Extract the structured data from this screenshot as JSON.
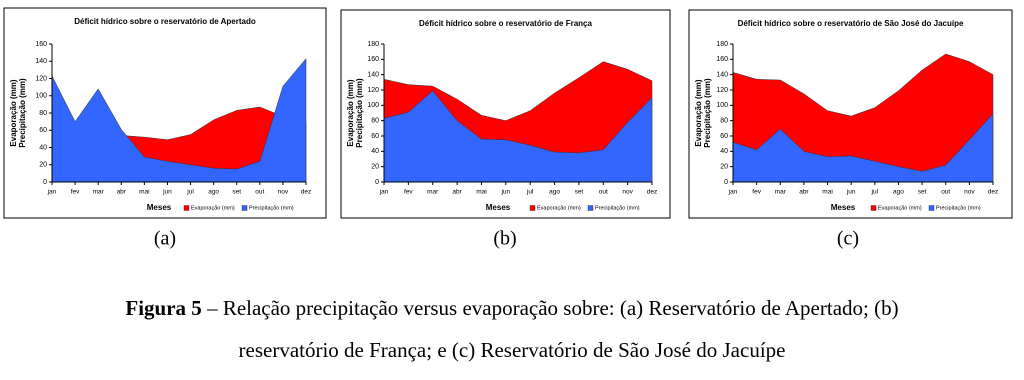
{
  "chart_data": [
    {
      "type": "area",
      "title": "Déficit hídrico sobre o reservatório de Apertado",
      "categories": [
        "jan",
        "fev",
        "mar",
        "abr",
        "mai",
        "jun",
        "jul",
        "ago",
        "set",
        "out",
        "nov",
        "dez"
      ],
      "series": [
        {
          "name": "Evaporação (mm)",
          "color": "#ff0000",
          "values": [
            60,
            55,
            55,
            54,
            52,
            49,
            55,
            72,
            83,
            87,
            76,
            70
          ]
        },
        {
          "name": "Precipitação (mm)",
          "color": "#3366ff",
          "values": [
            123,
            70,
            108,
            61,
            29,
            24,
            20,
            16,
            15,
            24,
            111,
            143
          ]
        }
      ],
      "ylim": [
        0,
        160
      ],
      "yticks": [
        0,
        20,
        40,
        60,
        80,
        100,
        120,
        140,
        160
      ],
      "x_label": "Meses",
      "y_label": [
        "Evaporação (mm)",
        "Precipitação (mm)"
      ],
      "legend": "bottom-right"
    },
    {
      "type": "area",
      "title": "Déficit hídrico sobre o reservatório de França",
      "categories": [
        "jan",
        "fev",
        "mar",
        "abr",
        "mai",
        "jun",
        "jul",
        "ago",
        "set",
        "out",
        "nov",
        "dez"
      ],
      "series": [
        {
          "name": "Evaporação (mm)",
          "color": "#ff0000",
          "values": [
            134,
            127,
            125,
            108,
            87,
            80,
            93,
            116,
            136,
            157,
            147,
            132
          ]
        },
        {
          "name": "Precipitação (mm)",
          "color": "#3366ff",
          "values": [
            83,
            91,
            119,
            80,
            56,
            55,
            48,
            39,
            38,
            42,
            78,
            110
          ]
        }
      ],
      "ylim": [
        0,
        180
      ],
      "yticks": [
        0,
        20,
        40,
        60,
        80,
        100,
        120,
        140,
        160,
        180
      ],
      "x_label": "Meses",
      "y_label": [
        "Evaporação (mm)",
        "Precipitação (mm)"
      ],
      "legend": "bottom-right"
    },
    {
      "type": "area",
      "title": "Déficit hídrico sobre o reservatório de São José do Jacuípe",
      "categories": [
        "jan",
        "fev",
        "mar",
        "abr",
        "mai",
        "jun",
        "jul",
        "ago",
        "set",
        "out",
        "nov",
        "dez"
      ],
      "series": [
        {
          "name": "Evaporação (mm)",
          "color": "#ff0000",
          "values": [
            143,
            134,
            133,
            115,
            93,
            86,
            97,
            119,
            146,
            167,
            157,
            140
          ]
        },
        {
          "name": "Precipitação (mm)",
          "color": "#3366ff",
          "values": [
            52,
            42,
            69,
            40,
            33,
            34,
            27,
            20,
            14,
            22,
            55,
            89
          ]
        }
      ],
      "ylim": [
        0,
        180
      ],
      "yticks": [
        0,
        20,
        40,
        60,
        80,
        100,
        120,
        140,
        160,
        180
      ],
      "x_label": "Meses",
      "y_label": [
        "Evaporação (mm)",
        "Precipitação (mm)"
      ],
      "legend": "bottom-right"
    }
  ],
  "panel_labels": [
    "(a)",
    "(b)",
    "(c)"
  ],
  "caption": {
    "label": "Figura 5",
    "line1": " – Relação precipitação versus evaporação sobre: (a) Reservatório de Apertado; (b)",
    "line2": "reservatório de França; e (c) Reservatório de São José do Jacuípe"
  }
}
